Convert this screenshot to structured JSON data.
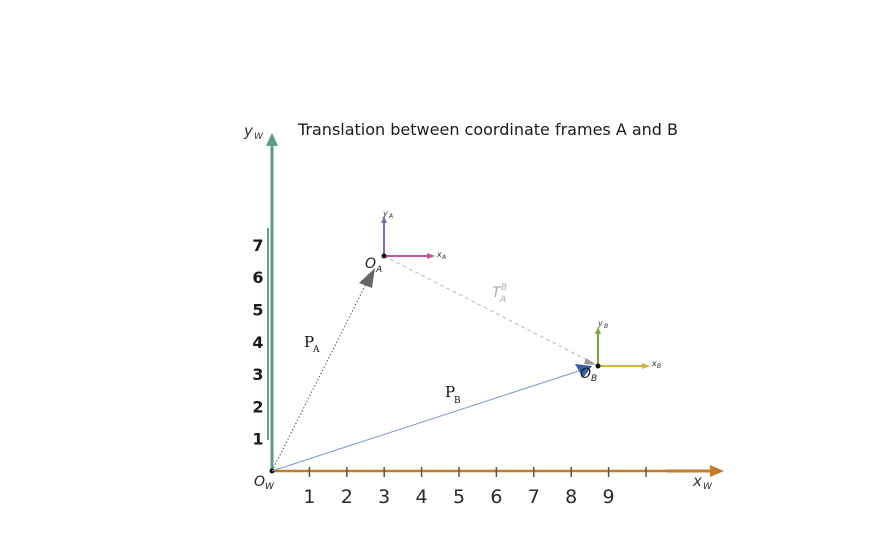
{
  "title": "Translation between coordinate frames A and B",
  "world": {
    "x_axis_label": "x",
    "x_axis_sub": "W",
    "y_axis_label": "y",
    "y_axis_sub": "W",
    "origin_label": "O",
    "origin_sub": "W",
    "x_ticks": [
      "1",
      "2",
      "3",
      "4",
      "5",
      "6",
      "7",
      "8",
      "9"
    ],
    "y_ticks": [
      "1",
      "2",
      "3",
      "4",
      "5",
      "6",
      "7"
    ]
  },
  "frame_a": {
    "origin_label": "O",
    "origin_sub": "A",
    "x_label": "x",
    "x_sub": "A",
    "y_label": "y",
    "y_sub": "A",
    "position": [
      3,
      6.3
    ]
  },
  "frame_b": {
    "origin_label": "O",
    "origin_sub": "B",
    "x_label": "x",
    "x_sub": "B",
    "y_label": "y",
    "y_sub": "B",
    "position": [
      8.8,
      3.3
    ]
  },
  "vectors": {
    "pa_label": "P",
    "pa_sub": "A",
    "pb_label": "P",
    "pb_sub": "B",
    "t_label": "T",
    "t_sup": "B",
    "t_sub": "A"
  },
  "colors": {
    "y_world": "#5a9e83",
    "x_world": "#c47b2c",
    "frame_a_x": "#c2559e",
    "frame_a_y": "#7f6bb0",
    "frame_b_x": "#d9b13b",
    "frame_b_y": "#7aa73a",
    "pa_arrow": "#666666",
    "pb_arrow": "#3a5fa8",
    "pb_line": "#7896c8",
    "t_line": "#bbbbbb"
  }
}
